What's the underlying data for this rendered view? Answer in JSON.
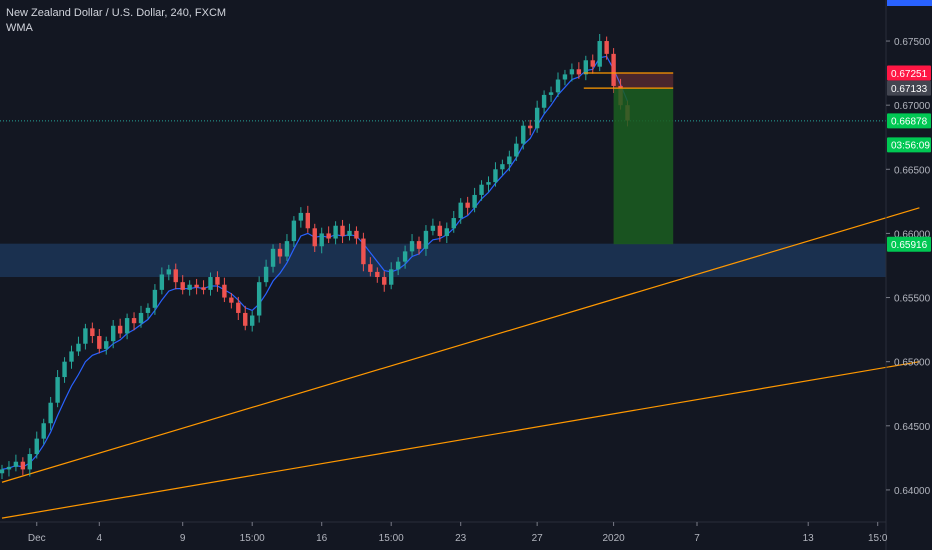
{
  "chart": {
    "symbol_line": "New Zealand Dollar / U.S. Dollar, 240, FXCM",
    "indicator": "WMA"
  },
  "colors": {
    "background": "#131722",
    "up": "#26a69a",
    "down": "#ef5350",
    "wma": "#2962ff",
    "trendline": "#ff9800",
    "zone": "#1e3a5f",
    "target": "#1b5e20",
    "axis_text": "#b2b5be",
    "price_label_red": "#ff1744",
    "price_label_gray": "#434651",
    "price_label_green": "#00c853"
  },
  "chart_data": {
    "type": "candlestick",
    "ylim": [
      0.6375,
      0.6782
    ],
    "y_ticks": [
      0.64,
      0.645,
      0.65,
      0.655,
      0.66,
      0.665,
      0.67,
      0.675
    ],
    "y_tick_labels": [
      "0.64000",
      "0.64500",
      "0.65000",
      "0.65500",
      "0.66000",
      "0.66500",
      "0.67000",
      "0.67500"
    ],
    "x_labels": [
      {
        "label": "Dec",
        "index": 5
      },
      {
        "label": "4",
        "index": 14
      },
      {
        "label": "9",
        "index": 26
      },
      {
        "label": "15:00",
        "index": 36
      },
      {
        "label": "16",
        "index": 46
      },
      {
        "label": "15:00",
        "index": 56
      },
      {
        "label": "23",
        "index": 66
      },
      {
        "label": "27",
        "index": 77
      },
      {
        "label": "2020",
        "index": 88
      },
      {
        "label": "7",
        "index": 100
      },
      {
        "label": "13",
        "index": 116
      },
      {
        "label": "15:0",
        "index": 126
      }
    ],
    "closes": [
      0.6416,
      0.6418,
      0.6422,
      0.6416,
      0.6428,
      0.644,
      0.6452,
      0.6468,
      0.6488,
      0.65,
      0.6508,
      0.6514,
      0.6526,
      0.652,
      0.651,
      0.6516,
      0.6528,
      0.6522,
      0.6534,
      0.653,
      0.6538,
      0.6542,
      0.6556,
      0.6568,
      0.6572,
      0.6562,
      0.6556,
      0.656,
      0.6558,
      0.6556,
      0.6566,
      0.656,
      0.655,
      0.6546,
      0.6538,
      0.6528,
      0.6536,
      0.6562,
      0.6574,
      0.6588,
      0.6582,
      0.6594,
      0.661,
      0.6616,
      0.6604,
      0.659,
      0.66,
      0.6596,
      0.6606,
      0.6598,
      0.6602,
      0.6596,
      0.6576,
      0.657,
      0.6566,
      0.656,
      0.6572,
      0.6578,
      0.6586,
      0.6594,
      0.6588,
      0.6602,
      0.6606,
      0.6598,
      0.6604,
      0.6612,
      0.6624,
      0.662,
      0.663,
      0.6638,
      0.664,
      0.665,
      0.6654,
      0.666,
      0.667,
      0.6684,
      0.6682,
      0.6698,
      0.6708,
      0.671,
      0.672,
      0.6724,
      0.6728,
      0.6724,
      0.6735,
      0.673,
      0.675,
      0.674,
      0.6715,
      0.67,
      0.6688
    ],
    "wma": [
      0.6416,
      0.6417,
      0.6419,
      0.6418,
      0.6421,
      0.6427,
      0.6435,
      0.6445,
      0.6458,
      0.647,
      0.6481,
      0.649,
      0.65,
      0.6505,
      0.6507,
      0.6509,
      0.6514,
      0.6517,
      0.6522,
      0.6525,
      0.6529,
      0.6533,
      0.654,
      0.6548,
      0.6555,
      0.6557,
      0.6557,
      0.6557,
      0.6558,
      0.6557,
      0.6559,
      0.6559,
      0.6556,
      0.6553,
      0.6548,
      0.6542,
      0.654,
      0.6545,
      0.6553,
      0.6563,
      0.6569,
      0.6577,
      0.6588,
      0.6598,
      0.66,
      0.6597,
      0.6598,
      0.6597,
      0.6599,
      0.6598,
      0.6599,
      0.6598,
      0.6592,
      0.6585,
      0.6578,
      0.6571,
      0.657,
      0.6572,
      0.6576,
      0.6582,
      0.6584,
      0.659,
      0.6595,
      0.6596,
      0.6599,
      0.6604,
      0.6611,
      0.6614,
      0.662,
      0.6627,
      0.6632,
      0.6639,
      0.6645,
      0.6651,
      0.6659,
      0.6669,
      0.6674,
      0.6684,
      0.6693,
      0.67,
      0.6708,
      0.6714,
      0.672,
      0.6722,
      0.6727,
      0.6728,
      0.6737,
      0.6738,
      0.6728,
      0.6716,
      0.6703
    ],
    "zone": {
      "from": 0.6566,
      "to": 0.6592
    },
    "trendlines": [
      {
        "from": {
          "index": 0,
          "price": 0.6406
        },
        "to": {
          "index": 132,
          "price": 0.662
        }
      },
      {
        "from": {
          "index": 0,
          "price": 0.6378
        },
        "to": {
          "index": 132,
          "price": 0.65
        }
      }
    ],
    "position": {
      "start_index": 88,
      "end_index": 96,
      "entry": 0.67133,
      "stop": 0.67251,
      "target": 0.65916
    },
    "current_price": 0.66878,
    "price_labels": [
      {
        "text": "0.67251",
        "price": 0.67251,
        "kind": "red"
      },
      {
        "text": "0.67133",
        "price": 0.67133,
        "kind": "gray"
      },
      {
        "text": "0.66878",
        "price": 0.66878,
        "kind": "green"
      },
      {
        "text": "03:56:09",
        "price": 0.6669,
        "kind": "green"
      },
      {
        "text": "0.65916",
        "price": 0.65916,
        "kind": "green"
      }
    ]
  }
}
